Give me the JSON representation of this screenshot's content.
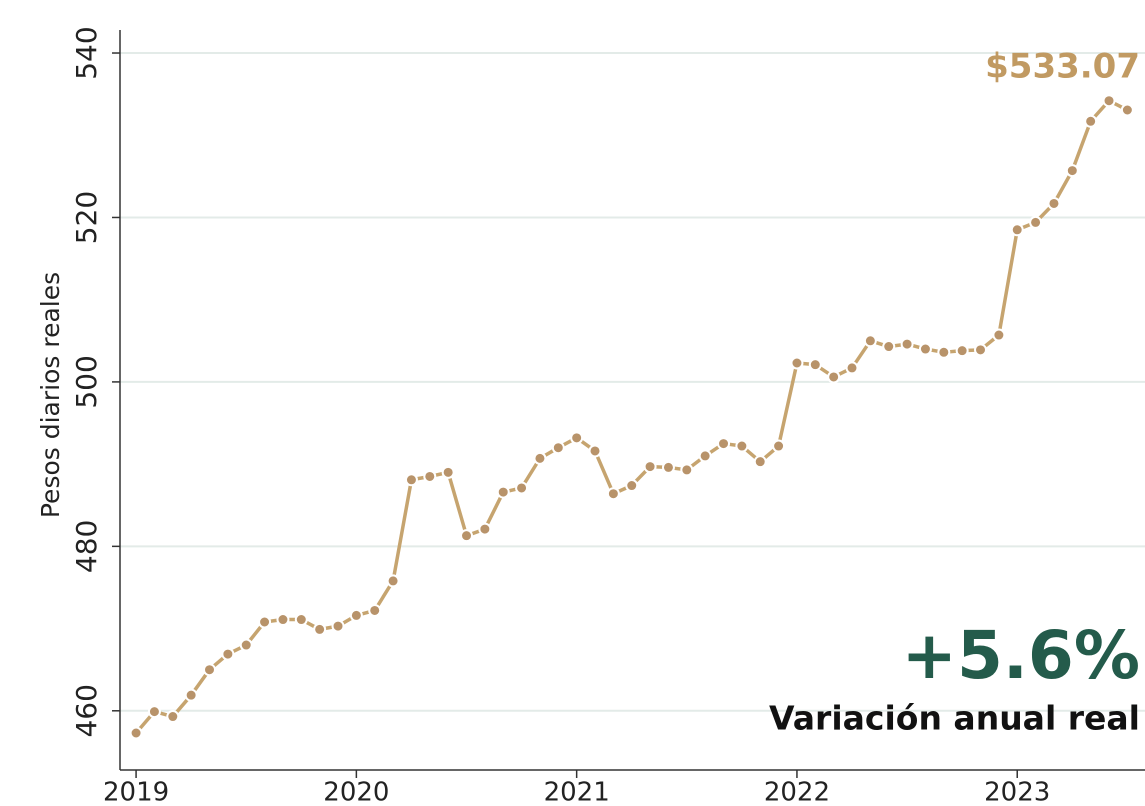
{
  "chart_data": {
    "type": "line",
    "ylabel": "Pesos diarios reales",
    "annotations": [
      "+5.6%",
      "Variación anual real"
    ],
    "x": [
      2019,
      2019.0833,
      2019.1667,
      2019.25,
      2019.3333,
      2019.4167,
      2019.5,
      2019.5833,
      2019.6667,
      2019.75,
      2019.8333,
      2019.9167,
      2020,
      2020.0833,
      2020.1667,
      2020.25,
      2020.3333,
      2020.4167,
      2020.5,
      2020.5833,
      2020.6667,
      2020.75,
      2020.8333,
      2020.9167,
      2021,
      2021.0833,
      2021.1667,
      2021.25,
      2021.3333,
      2021.4167,
      2021.5,
      2021.5833,
      2021.6667,
      2021.75,
      2021.8333,
      2021.9167,
      2022,
      2022.0833,
      2022.1667,
      2022.25,
      2022.3333,
      2022.4167,
      2022.5,
      2022.5833,
      2022.6667,
      2022.75,
      2022.8333,
      2022.9167,
      2023,
      2023.0833,
      2023.1667,
      2023.25,
      2023.3333,
      2023.4167,
      2023.5
    ],
    "values": [
      457.3,
      459.9,
      459.3,
      461.9,
      465.0,
      466.9,
      468.0,
      470.8,
      471.1,
      471.1,
      469.9,
      470.3,
      471.6,
      472.2,
      475.8,
      488.1,
      488.5,
      489.0,
      481.3,
      482.1,
      486.6,
      487.1,
      490.7,
      492.0,
      493.2,
      491.6,
      486.4,
      487.4,
      489.7,
      489.6,
      489.3,
      491.0,
      492.5,
      492.2,
      490.3,
      492.2,
      502.3,
      502.1,
      500.6,
      501.7,
      505.0,
      504.3,
      504.6,
      504.0,
      503.6,
      503.8,
      503.9,
      505.7,
      518.5,
      519.4,
      521.7,
      525.7,
      531.7,
      534.2,
      533.07
    ],
    "value_labels": [
      null,
      null,
      null,
      null,
      null,
      null,
      null,
      null,
      null,
      null,
      null,
      null,
      null,
      null,
      null,
      null,
      null,
      null,
      null,
      null,
      null,
      null,
      null,
      null,
      null,
      null,
      null,
      null,
      null,
      null,
      null,
      null,
      null,
      null,
      null,
      null,
      null,
      null,
      null,
      null,
      null,
      null,
      null,
      null,
      null,
      null,
      null,
      null,
      null,
      null,
      null,
      null,
      null,
      null,
      "$533.07"
    ],
    "color": "#c6a46f",
    "marker_color": "#b8936a",
    "label_color": "#c19a62",
    "annotation_color": "#245b4b",
    "xlim": [
      2018.927,
      2023.58
    ],
    "xticks": [
      2019,
      2020,
      2021,
      2022,
      2023
    ],
    "ylim": [
      452.8,
      542.8
    ],
    "yticks": [
      460,
      480,
      500,
      520,
      540
    ],
    "grid": true
  }
}
